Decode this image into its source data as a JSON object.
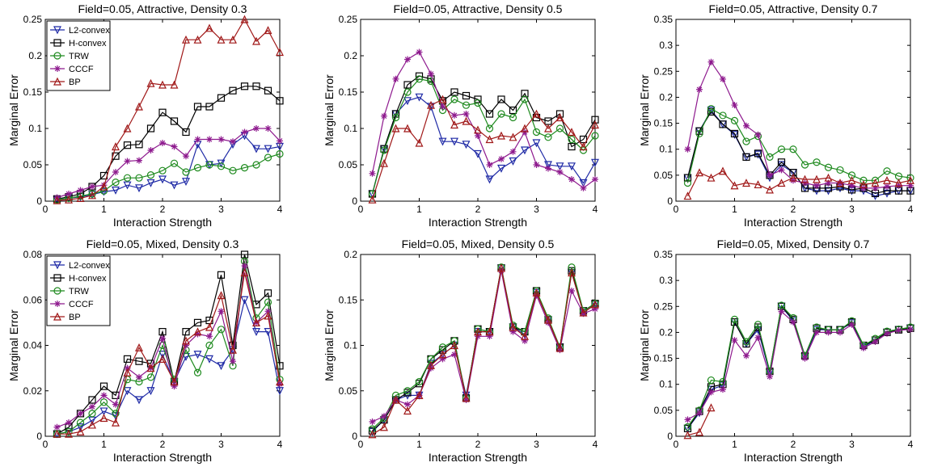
{
  "series_styles": [
    {
      "name": "L2-convex",
      "color": "#1f2aa6",
      "marker": "triangle-down"
    },
    {
      "name": "H-convex",
      "color": "#000000",
      "marker": "square"
    },
    {
      "name": "TRW",
      "color": "#1e8a1e",
      "marker": "circle"
    },
    {
      "name": "CCCF",
      "color": "#8e1a8e",
      "marker": "asterisk"
    },
    {
      "name": "BP",
      "color": "#a01818",
      "marker": "triangle-up"
    }
  ],
  "chart_data": [
    {
      "type": "line",
      "title": "Field=0.05, Attractive, Density 0.3",
      "xlabel": "Interaction Strength",
      "ylabel": "Marginal Error",
      "xlim": [
        0,
        4
      ],
      "ylim": [
        0,
        0.25
      ],
      "xticks": [
        "0",
        "1",
        "2",
        "3",
        "4"
      ],
      "yticks": [
        "0",
        "0.05",
        "0.1",
        "0.15",
        "0.2",
        "0.25"
      ],
      "legend": "top-left",
      "x": [
        0.2,
        0.4,
        0.6,
        0.8,
        1.0,
        1.2,
        1.4,
        1.6,
        1.8,
        2.0,
        2.2,
        2.4,
        2.6,
        2.8,
        3.0,
        3.2,
        3.4,
        3.6,
        3.8,
        4.0
      ],
      "series": [
        {
          "name": "L2-convex",
          "values": [
            0.002,
            0.004,
            0.006,
            0.009,
            0.013,
            0.015,
            0.022,
            0.018,
            0.025,
            0.03,
            0.022,
            0.027,
            0.078,
            0.05,
            0.052,
            0.078,
            0.09,
            0.072,
            0.072,
            0.075
          ]
        },
        {
          "name": "H-convex",
          "values": [
            0.003,
            0.006,
            0.01,
            0.02,
            0.035,
            0.062,
            0.077,
            0.078,
            0.1,
            0.122,
            0.11,
            0.095,
            0.13,
            0.13,
            0.142,
            0.152,
            0.158,
            0.158,
            0.152,
            0.138
          ]
        },
        {
          "name": "TRW",
          "values": [
            0.002,
            0.004,
            0.007,
            0.01,
            0.014,
            0.026,
            0.032,
            0.032,
            0.036,
            0.042,
            0.052,
            0.04,
            0.046,
            0.05,
            0.048,
            0.042,
            0.046,
            0.05,
            0.06,
            0.065
          ]
        },
        {
          "name": "CCCF",
          "values": [
            0.005,
            0.01,
            0.015,
            0.02,
            0.022,
            0.04,
            0.055,
            0.056,
            0.07,
            0.08,
            0.075,
            0.062,
            0.085,
            0.085,
            0.085,
            0.082,
            0.095,
            0.1,
            0.1,
            0.083
          ]
        },
        {
          "name": "BP",
          "values": [
            0.001,
            0.002,
            0.004,
            0.008,
            0.02,
            0.075,
            0.1,
            0.13,
            0.162,
            0.16,
            0.16,
            0.222,
            0.222,
            0.238,
            0.222,
            0.222,
            0.25,
            0.22,
            0.235,
            0.205
          ]
        }
      ]
    },
    {
      "type": "line",
      "title": "Field=0.05, Attractive, Density 0.5",
      "xlabel": "Interaction Strength",
      "ylabel": "Marginal Error",
      "xlim": [
        0,
        4
      ],
      "ylim": [
        0,
        0.25
      ],
      "xticks": [
        "0",
        "1",
        "2",
        "3",
        "4"
      ],
      "yticks": [
        "0",
        "0.05",
        "0.1",
        "0.15",
        "0.2",
        "0.25"
      ],
      "legend": "none",
      "x": [
        0.2,
        0.4,
        0.6,
        0.8,
        1.0,
        1.2,
        1.4,
        1.6,
        1.8,
        2.0,
        2.2,
        2.4,
        2.6,
        2.8,
        3.0,
        3.2,
        3.4,
        3.6,
        3.8,
        4.0
      ],
      "series": [
        {
          "name": "L2-convex",
          "values": [
            0.01,
            0.072,
            0.12,
            0.138,
            0.143,
            0.13,
            0.082,
            0.082,
            0.078,
            0.065,
            0.03,
            0.045,
            0.055,
            0.07,
            0.08,
            0.05,
            0.048,
            0.048,
            0.025,
            0.053
          ]
        },
        {
          "name": "H-convex",
          "values": [
            0.01,
            0.072,
            0.12,
            0.16,
            0.172,
            0.168,
            0.138,
            0.15,
            0.145,
            0.14,
            0.12,
            0.14,
            0.125,
            0.148,
            0.115,
            0.11,
            0.12,
            0.075,
            0.085,
            0.112
          ]
        },
        {
          "name": "TRW",
          "values": [
            0.01,
            0.07,
            0.115,
            0.15,
            0.168,
            0.165,
            0.125,
            0.14,
            0.132,
            0.135,
            0.1,
            0.12,
            0.115,
            0.14,
            0.095,
            0.088,
            0.1,
            0.085,
            0.07,
            0.09
          ]
        },
        {
          "name": "CCCF",
          "values": [
            0.038,
            0.117,
            0.168,
            0.195,
            0.205,
            0.175,
            0.13,
            0.118,
            0.12,
            0.09,
            0.05,
            0.058,
            0.068,
            0.095,
            0.05,
            0.045,
            0.04,
            0.03,
            0.018,
            0.03
          ]
        },
        {
          "name": "BP",
          "values": [
            0.002,
            0.052,
            0.1,
            0.1,
            0.08,
            0.132,
            0.14,
            0.105,
            0.11,
            0.098,
            0.085,
            0.09,
            0.088,
            0.1,
            0.12,
            0.1,
            0.115,
            0.095,
            0.075,
            0.105
          ]
        }
      ]
    },
    {
      "type": "line",
      "title": "Field=0.05, Attractive, Density 0.7",
      "xlabel": "Interaction Strength",
      "ylabel": "Marginal Error",
      "xlim": [
        0,
        4
      ],
      "ylim": [
        0,
        0.35
      ],
      "xticks": [
        "0",
        "1",
        "2",
        "3",
        "4"
      ],
      "yticks": [
        "0",
        "0.05",
        "0.1",
        "0.15",
        "0.2",
        "0.25",
        "0.3",
        "0.35"
      ],
      "legend": "none",
      "x": [
        0.2,
        0.4,
        0.6,
        0.8,
        1.0,
        1.2,
        1.4,
        1.6,
        1.8,
        2.0,
        2.2,
        2.4,
        2.6,
        2.8,
        3.0,
        3.2,
        3.4,
        3.6,
        3.8,
        4.0
      ],
      "series": [
        {
          "name": "L2-convex",
          "values": [
            0.045,
            0.135,
            0.175,
            0.148,
            0.128,
            0.085,
            0.09,
            0.045,
            0.07,
            0.055,
            0.025,
            0.02,
            0.02,
            0.025,
            0.02,
            0.02,
            0.01,
            0.015,
            0.02,
            0.02
          ]
        },
        {
          "name": "H-convex",
          "values": [
            0.045,
            0.135,
            0.172,
            0.148,
            0.13,
            0.085,
            0.092,
            0.05,
            0.075,
            0.055,
            0.025,
            0.025,
            0.025,
            0.028,
            0.022,
            0.025,
            0.015,
            0.02,
            0.02,
            0.02
          ]
        },
        {
          "name": "TRW",
          "values": [
            0.035,
            0.13,
            0.178,
            0.165,
            0.155,
            0.115,
            0.125,
            0.085,
            0.1,
            0.1,
            0.07,
            0.075,
            0.065,
            0.06,
            0.05,
            0.04,
            0.04,
            0.058,
            0.048,
            0.045
          ]
        },
        {
          "name": "CCCF",
          "values": [
            0.1,
            0.215,
            0.268,
            0.235,
            0.185,
            0.145,
            0.128,
            0.05,
            0.06,
            0.04,
            0.035,
            0.03,
            0.035,
            0.035,
            0.03,
            0.025,
            0.025,
            0.028,
            0.03,
            0.03
          ]
        },
        {
          "name": "BP",
          "values": [
            0.01,
            0.055,
            0.045,
            0.058,
            0.03,
            0.035,
            0.032,
            0.022,
            0.035,
            0.045,
            0.042,
            0.042,
            0.045,
            0.035,
            0.04,
            0.032,
            0.035,
            0.04,
            0.035,
            0.04
          ]
        }
      ]
    },
    {
      "type": "line",
      "title": "Field=0.05, Mixed, Density 0.3",
      "xlabel": "Interaction Strength",
      "ylabel": "Marginal Error",
      "xlim": [
        0,
        4
      ],
      "ylim": [
        0,
        0.08
      ],
      "xticks": [
        "0",
        "1",
        "2",
        "3",
        "4"
      ],
      "yticks": [
        "0",
        "0.02",
        "0.04",
        "0.06",
        "0.08"
      ],
      "legend": "top-left",
      "x": [
        0.2,
        0.4,
        0.6,
        0.8,
        1.0,
        1.2,
        1.4,
        1.6,
        1.8,
        2.0,
        2.2,
        2.4,
        2.6,
        2.8,
        3.0,
        3.2,
        3.4,
        3.6,
        3.8,
        4.0
      ],
      "series": [
        {
          "name": "L2-convex",
          "values": [
            0.001,
            0.002,
            0.004,
            0.007,
            0.011,
            0.009,
            0.02,
            0.016,
            0.02,
            0.036,
            0.024,
            0.035,
            0.036,
            0.034,
            0.031,
            0.038,
            0.06,
            0.046,
            0.046,
            0.02
          ]
        },
        {
          "name": "H-convex",
          "values": [
            0.001,
            0.004,
            0.01,
            0.016,
            0.022,
            0.018,
            0.034,
            0.033,
            0.032,
            0.046,
            0.024,
            0.046,
            0.05,
            0.051,
            0.071,
            0.04,
            0.08,
            0.058,
            0.063,
            0.031
          ]
        },
        {
          "name": "TRW",
          "values": [
            0.001,
            0.002,
            0.006,
            0.01,
            0.015,
            0.01,
            0.025,
            0.024,
            0.026,
            0.04,
            0.025,
            0.038,
            0.028,
            0.04,
            0.047,
            0.031,
            0.077,
            0.052,
            0.059,
            0.025
          ]
        },
        {
          "name": "CCCF",
          "values": [
            0.004,
            0.006,
            0.01,
            0.013,
            0.018,
            0.014,
            0.03,
            0.026,
            0.03,
            0.043,
            0.022,
            0.04,
            0.045,
            0.044,
            0.055,
            0.033,
            0.075,
            0.05,
            0.055,
            0.023
          ]
        },
        {
          "name": "BP",
          "values": [
            0.001,
            0.001,
            0.002,
            0.005,
            0.008,
            0.006,
            0.028,
            0.039,
            0.03,
            0.034,
            0.024,
            0.042,
            0.046,
            0.048,
            0.062,
            0.038,
            0.072,
            0.05,
            0.053,
            0.024
          ]
        }
      ]
    },
    {
      "type": "line",
      "title": "Field=0.05, Mixed, Density 0.5",
      "xlabel": "Interaction Strength",
      "ylabel": "Marginal Error",
      "xlim": [
        0,
        4
      ],
      "ylim": [
        0,
        0.2
      ],
      "xticks": [
        "0",
        "1",
        "2",
        "3",
        "4"
      ],
      "yticks": [
        "0",
        "0.05",
        "0.1",
        "0.15",
        "0.2"
      ],
      "legend": "none",
      "x": [
        0.2,
        0.4,
        0.6,
        0.8,
        1.0,
        1.2,
        1.4,
        1.6,
        1.8,
        2.0,
        2.2,
        2.4,
        2.6,
        2.8,
        3.0,
        3.2,
        3.4,
        3.6,
        3.8,
        4.0
      ],
      "series": [
        {
          "name": "L2-convex",
          "values": [
            0.005,
            0.018,
            0.04,
            0.045,
            0.045,
            0.08,
            0.09,
            0.1,
            0.045,
            0.115,
            0.115,
            0.185,
            0.12,
            0.112,
            0.158,
            0.128,
            0.098,
            0.18,
            0.136,
            0.145
          ]
        },
        {
          "name": "H-convex",
          "values": [
            0.006,
            0.018,
            0.04,
            0.048,
            0.058,
            0.085,
            0.095,
            0.105,
            0.042,
            0.118,
            0.115,
            0.185,
            0.12,
            0.115,
            0.16,
            0.128,
            0.098,
            0.182,
            0.138,
            0.146
          ]
        },
        {
          "name": "TRW",
          "values": [
            0.008,
            0.02,
            0.045,
            0.05,
            0.06,
            0.085,
            0.098,
            0.105,
            0.042,
            0.118,
            0.115,
            0.186,
            0.122,
            0.115,
            0.16,
            0.13,
            0.098,
            0.186,
            0.138,
            0.146
          ]
        },
        {
          "name": "CCCF",
          "values": [
            0.016,
            0.022,
            0.04,
            0.035,
            0.045,
            0.075,
            0.085,
            0.09,
            0.04,
            0.11,
            0.11,
            0.182,
            0.115,
            0.105,
            0.155,
            0.125,
            0.095,
            0.16,
            0.135,
            0.14
          ]
        },
        {
          "name": "BP",
          "values": [
            0.002,
            0.01,
            0.04,
            0.028,
            0.045,
            0.078,
            0.09,
            0.1,
            0.042,
            0.115,
            0.115,
            0.185,
            0.12,
            0.11,
            0.158,
            0.128,
            0.097,
            0.18,
            0.136,
            0.145
          ]
        }
      ]
    },
    {
      "type": "line",
      "title": "Field=0.05, Mixed, Density 0.7",
      "xlabel": "Interaction Strength",
      "ylabel": "Marginal Error",
      "xlim": [
        0,
        4
      ],
      "ylim": [
        0,
        0.35
      ],
      "xticks": [
        "0",
        "1",
        "2",
        "3",
        "4"
      ],
      "yticks": [
        "0",
        "0.05",
        "0.1",
        "0.15",
        "0.2",
        "0.25",
        "0.3",
        "0.35"
      ],
      "legend": "none",
      "x": [
        0.2,
        0.4,
        0.6,
        0.8,
        1.0,
        1.2,
        1.4,
        1.6,
        1.8,
        2.0,
        2.2,
        2.4,
        2.6,
        2.8,
        3.0,
        3.2,
        3.4,
        3.6,
        3.8,
        4.0
      ],
      "series": [
        {
          "name": "L2-convex",
          "values": [
            0.015,
            0.045,
            0.09,
            0.098,
            0.22,
            0.178,
            0.205,
            0.122,
            0.25,
            0.222,
            0.153,
            0.205,
            0.205,
            0.205,
            0.218,
            0.172,
            0.185,
            0.2,
            0.205,
            0.208
          ]
        },
        {
          "name": "H-convex",
          "values": [
            0.015,
            0.048,
            0.095,
            0.1,
            0.22,
            0.178,
            0.21,
            0.125,
            0.25,
            0.225,
            0.155,
            0.208,
            0.205,
            0.205,
            0.22,
            0.175,
            0.185,
            0.2,
            0.205,
            0.208
          ]
        },
        {
          "name": "TRW",
          "values": [
            0.018,
            0.05,
            0.108,
            0.105,
            0.225,
            0.182,
            0.215,
            0.125,
            0.252,
            0.228,
            0.155,
            0.21,
            0.205,
            0.205,
            0.222,
            0.175,
            0.188,
            0.202,
            0.206,
            0.21
          ]
        },
        {
          "name": "CCCF",
          "values": [
            0.032,
            0.045,
            0.085,
            0.09,
            0.185,
            0.155,
            0.19,
            0.115,
            0.24,
            0.22,
            0.15,
            0.2,
            0.2,
            0.2,
            0.215,
            0.17,
            0.182,
            0.198,
            0.204,
            0.206
          ]
        },
        {
          "name": "BP",
          "values": [
            0.002,
            0.008,
            0.055,
            null,
            null,
            null,
            null,
            null,
            null,
            null,
            null,
            null,
            null,
            null,
            null,
            null,
            null,
            null,
            null,
            null
          ]
        }
      ]
    }
  ]
}
